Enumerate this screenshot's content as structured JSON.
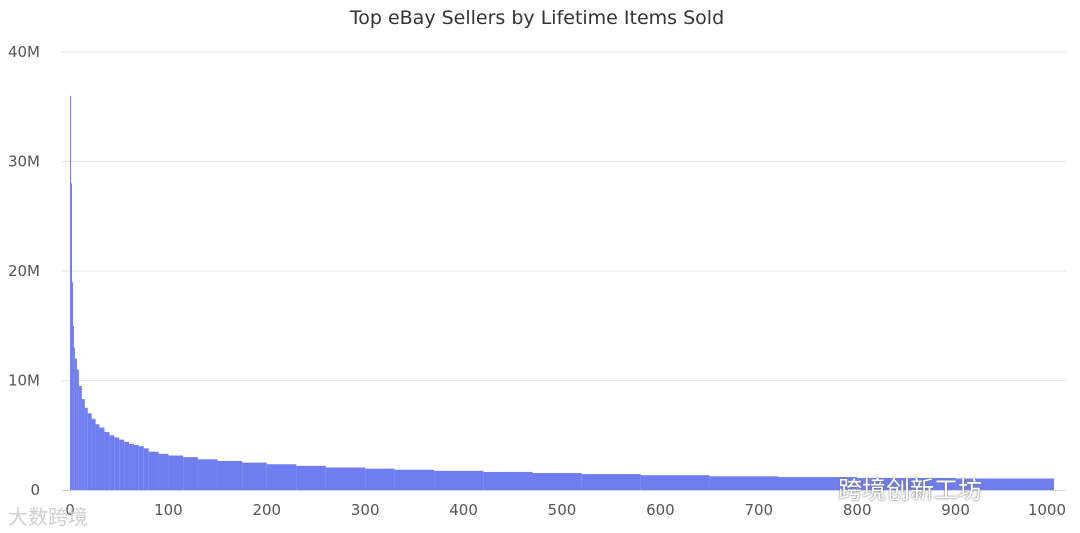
{
  "chart_data": {
    "type": "bar",
    "title": "Top eBay Sellers by Lifetime Items Sold",
    "xlabel": "",
    "ylabel": "",
    "xlim": [
      0,
      1000
    ],
    "ylim": [
      0,
      40000000
    ],
    "x_ticks": [
      {
        "value": 0,
        "label": "0"
      },
      {
        "value": 100,
        "label": "100"
      },
      {
        "value": 200,
        "label": "200"
      },
      {
        "value": 300,
        "label": "300"
      },
      {
        "value": 400,
        "label": "400"
      },
      {
        "value": 500,
        "label": "500"
      },
      {
        "value": 600,
        "label": "600"
      },
      {
        "value": 700,
        "label": "700"
      },
      {
        "value": 800,
        "label": "800"
      },
      {
        "value": 900,
        "label": "900"
      },
      {
        "value": 1000,
        "label": "1000"
      }
    ],
    "y_ticks": [
      {
        "value": 0,
        "label": "0"
      },
      {
        "value": 10000000,
        "label": "10M"
      },
      {
        "value": 20000000,
        "label": "20M"
      },
      {
        "value": 30000000,
        "label": "30M"
      },
      {
        "value": 40000000,
        "label": "40M"
      }
    ],
    "grid": true,
    "bar_color": "#6f7df0",
    "series": [
      {
        "x": [
          1,
          2,
          3,
          4,
          5,
          7,
          9,
          12,
          15,
          18,
          22,
          26,
          30,
          35,
          40,
          45,
          50,
          55,
          60,
          65,
          70,
          75,
          80,
          90,
          100,
          115,
          130,
          150,
          175,
          200,
          230,
          260,
          300,
          330,
          370,
          420,
          470,
          520,
          580,
          650,
          720,
          800,
          900,
          1000
        ],
        "values": [
          36000000,
          28000000,
          19000000,
          15000000,
          13000000,
          12000000,
          11000000,
          9500000,
          8300000,
          7500000,
          7000000,
          6500000,
          6000000,
          5700000,
          5300000,
          5000000,
          4800000,
          4600000,
          4400000,
          4200000,
          4100000,
          4000000,
          3800000,
          3500000,
          3300000,
          3150000,
          3000000,
          2800000,
          2650000,
          2500000,
          2350000,
          2200000,
          2050000,
          1950000,
          1850000,
          1750000,
          1650000,
          1550000,
          1450000,
          1350000,
          1250000,
          1180000,
          1100000,
          1050000
        ]
      }
    ]
  },
  "watermarks": {
    "left": "大数跨境",
    "right": "跨境创新工坊"
  }
}
